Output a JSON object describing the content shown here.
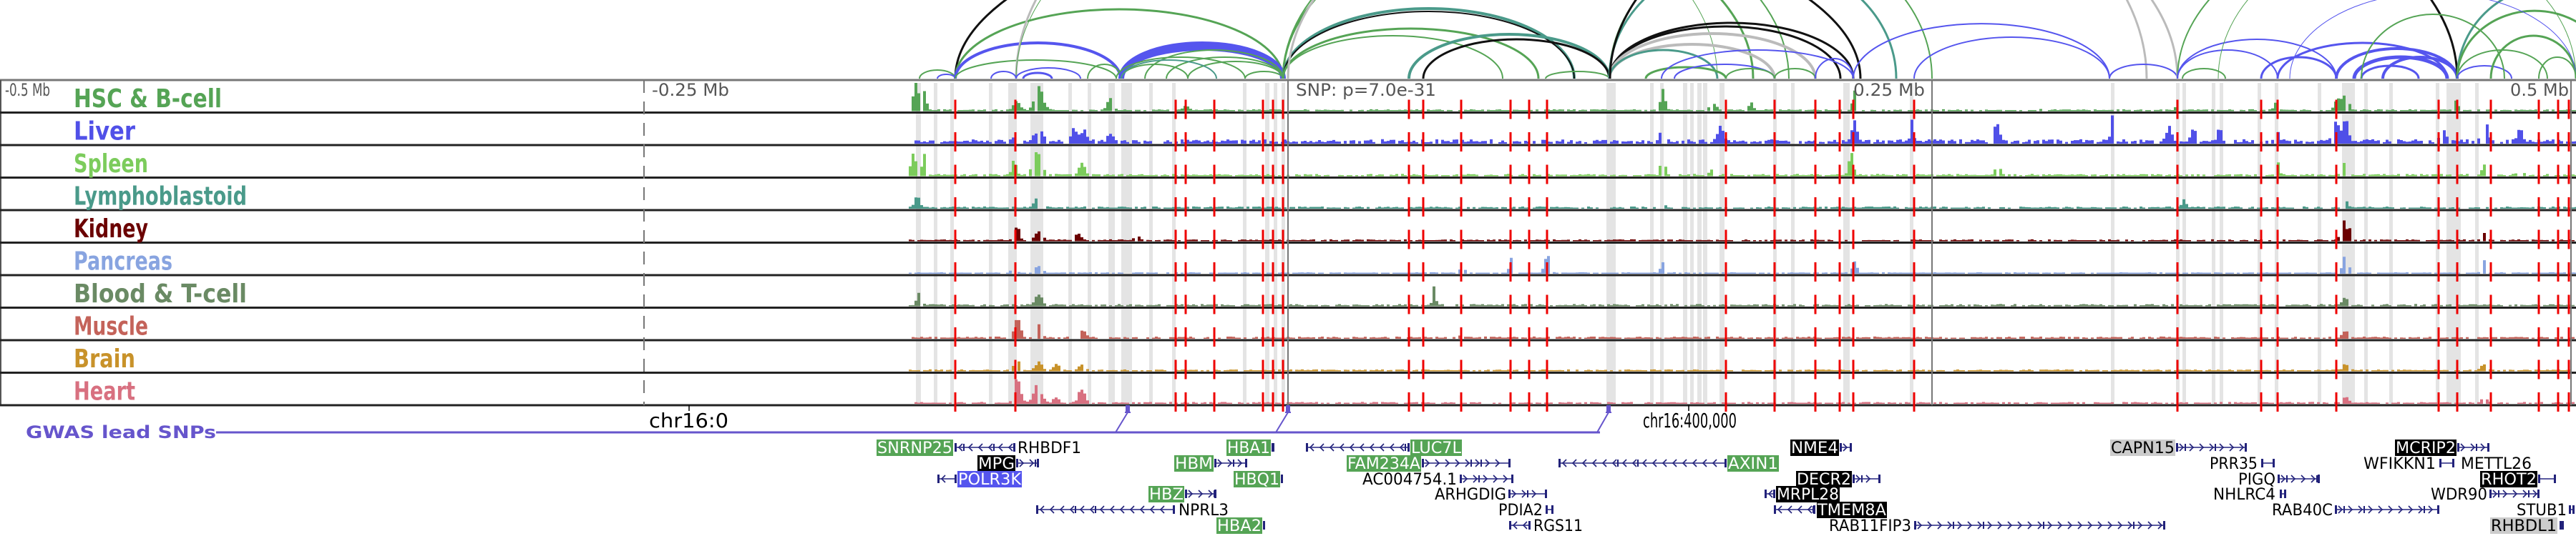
{
  "axis": {
    "left_label": "-0.5 Mb",
    "minus_quarter_label": "-0.25 Mb",
    "snp_label": "SNP: p=7.0e-31",
    "plus_quarter_label": "0.25 Mb",
    "right_label": "0.5 Mb"
  },
  "tracks": [
    {
      "label": "HSC & B-cell",
      "color": "#55a455"
    },
    {
      "label": "Liver",
      "color": "#5050e8"
    },
    {
      "label": "Spleen",
      "color": "#7ccc5c"
    },
    {
      "label": "Lymphoblastoid",
      "color": "#4a9a8a"
    },
    {
      "label": "Kidney",
      "color": "#6b0000"
    },
    {
      "label": "Pancreas",
      "color": "#88a4e0"
    },
    {
      "label": "Blood & T-cell",
      "color": "#6a8a64"
    },
    {
      "label": "Muscle",
      "color": "#c4635a"
    },
    {
      "label": "Brain",
      "color": "#c8922a"
    },
    {
      "label": "Heart",
      "color": "#d87080"
    }
  ],
  "gwas": {
    "label": "GWAS lead SNPs",
    "color": "#6655cc"
  },
  "coords": {
    "chr_start": "chr16:0",
    "chr_mid": "chr16:400,000"
  },
  "genes": [
    {
      "name": "SNRNP25",
      "style": "green"
    },
    {
      "name": "RHBDF1",
      "style": "plain"
    },
    {
      "name": "HBA1",
      "style": "green"
    },
    {
      "name": "LUC7L",
      "style": "green"
    },
    {
      "name": "NME4",
      "style": "black"
    },
    {
      "name": "CAPN15",
      "style": "gray"
    },
    {
      "name": "MCRIP2",
      "style": "black"
    },
    {
      "name": "MPG",
      "style": "black"
    },
    {
      "name": "HBM",
      "style": "green"
    },
    {
      "name": "FAM234A",
      "style": "green"
    },
    {
      "name": "AXIN1",
      "style": "green"
    },
    {
      "name": "PRR35",
      "style": "plain"
    },
    {
      "name": "WFIKKN1",
      "style": "plain"
    },
    {
      "name": "METTL26",
      "style": "plain"
    },
    {
      "name": "POLR3K",
      "style": "blue"
    },
    {
      "name": "HBQ1",
      "style": "green"
    },
    {
      "name": "AC004754.1",
      "style": "plain"
    },
    {
      "name": "DECR2",
      "style": "black"
    },
    {
      "name": "PIGQ",
      "style": "plain"
    },
    {
      "name": "RHOT2",
      "style": "black"
    },
    {
      "name": "HBZ",
      "style": "green"
    },
    {
      "name": "ARHGDIG",
      "style": "plain"
    },
    {
      "name": "MRPL28",
      "style": "black"
    },
    {
      "name": "NHLRC4",
      "style": "plain"
    },
    {
      "name": "WDR90",
      "style": "plain"
    },
    {
      "name": "NPRL3",
      "style": "plain"
    },
    {
      "name": "PDIA2",
      "style": "plain"
    },
    {
      "name": "TMEM8A",
      "style": "black"
    },
    {
      "name": "RAB40C",
      "style": "plain"
    },
    {
      "name": "STUB1",
      "style": "plain"
    },
    {
      "name": "HBA2",
      "style": "green"
    },
    {
      "name": "RGS11",
      "style": "plain"
    },
    {
      "name": "RAB11FIP3",
      "style": "plain"
    },
    {
      "name": "RHBDL1",
      "style": "gray"
    }
  ],
  "colors": {
    "snp_line": "#ee0000",
    "highlight": "#e4e4e4",
    "gene_structure": "#22227a",
    "box_green": "#55a455",
    "box_black": "#000000",
    "box_blue": "#5555ee",
    "box_gray": "#cccccc"
  }
}
